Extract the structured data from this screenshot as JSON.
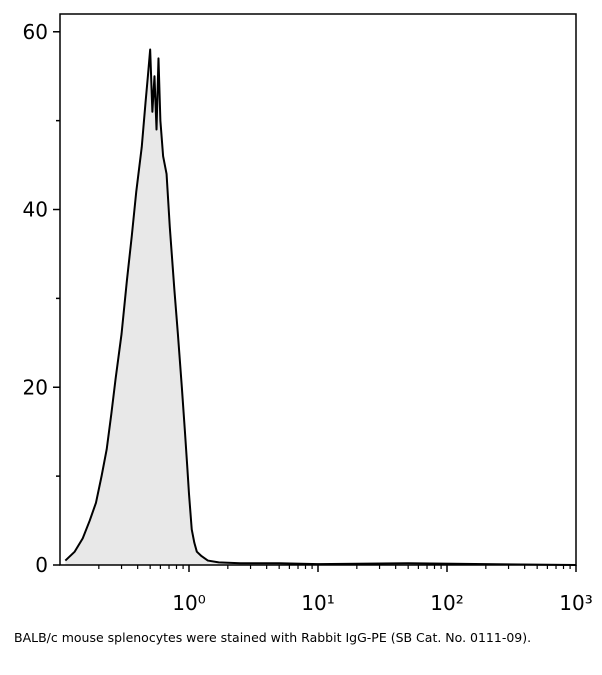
{
  "chart_data": {
    "type": "area",
    "xscale": "log",
    "x": [
      0.11,
      0.13,
      0.15,
      0.17,
      0.19,
      0.21,
      0.23,
      0.25,
      0.27,
      0.3,
      0.33,
      0.36,
      0.39,
      0.43,
      0.46,
      0.48,
      0.5,
      0.52,
      0.54,
      0.56,
      0.58,
      0.6,
      0.63,
      0.67,
      0.71,
      0.77,
      0.82,
      0.88,
      0.93,
      0.97,
      1.0,
      1.05,
      1.1,
      1.15,
      1.25,
      1.4,
      1.7,
      2.5,
      5,
      10,
      50,
      200,
      1000
    ],
    "values": [
      0.5,
      1.5,
      3,
      5,
      7,
      10,
      13,
      17,
      21,
      26,
      32,
      37,
      42,
      47,
      52,
      55,
      58,
      51,
      55,
      49,
      57,
      50,
      46,
      44,
      38,
      31,
      26,
      20,
      15,
      11,
      8,
      4,
      2.5,
      1.5,
      1,
      0.5,
      0.3,
      0.2,
      0.2,
      0.1,
      0.2,
      0.1,
      0
    ],
    "color": "#e8e8e8",
    "line_color": "#000000",
    "xlim": [
      0.1,
      1000
    ],
    "xticks": [
      {
        "value": 1,
        "label": "10⁰"
      },
      {
        "value": 10,
        "label": "10¹"
      },
      {
        "value": 100,
        "label": "10²"
      },
      {
        "value": 1000,
        "label": "10³"
      }
    ],
    "xminorticks": [
      0.2,
      0.3,
      0.4,
      0.5,
      0.6,
      0.7,
      0.8,
      0.9,
      2,
      3,
      4,
      5,
      6,
      7,
      8,
      9,
      20,
      30,
      40,
      50,
      60,
      70,
      80,
      90,
      200,
      300,
      400,
      500,
      600,
      700,
      800,
      900
    ],
    "ylim": [
      0,
      62
    ],
    "yticks": [
      0,
      20,
      40,
      60
    ],
    "yminorticks": [
      10,
      30,
      50
    ],
    "caption": "BALB/c mouse splenocytes were stained with Rabbit IgG-PE (SB Cat. No. 0111-09)."
  }
}
